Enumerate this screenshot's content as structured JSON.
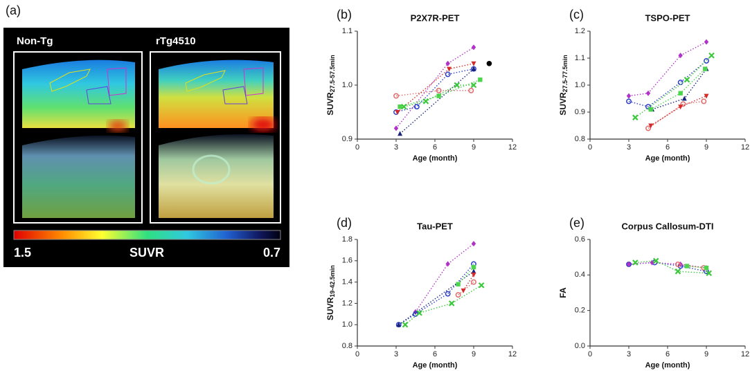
{
  "image_panel": {
    "label": "(a)",
    "left_title": "Non-Tg",
    "right_title": "rTg4510",
    "colorbar": {
      "label": "SUVR",
      "left": 1.5,
      "right": 0.7
    }
  },
  "chart_data": [
    {
      "type": "line",
      "panel_label": "(b)",
      "title": "P2X7R-PET",
      "ylabel": "SUVR",
      "ylabel_sub": "27.5-57.5min",
      "xlabel": "Age (month)",
      "xlim": [
        0,
        12
      ],
      "xticks": [
        0,
        3,
        6,
        9,
        12
      ],
      "ylim": [
        0.9,
        1.1
      ],
      "yticks": [
        0.9,
        {
          "value": 1,
          "label": "1.0"
        },
        1.1
      ],
      "series": [
        {
          "color": "#b032c8",
          "marker": "diamond",
          "x": [
            3,
            7,
            9
          ],
          "values": [
            0.92,
            1.04,
            1.07
          ]
        },
        {
          "color": "#2a3cc8",
          "marker": "circle",
          "x": [
            3,
            4.6,
            7,
            9
          ],
          "values": [
            0.95,
            0.96,
            1.02,
            1.03
          ]
        },
        {
          "color": "#1a237e",
          "marker": "triangle",
          "x": [
            3.3,
            9
          ],
          "values": [
            0.91,
            1.03
          ]
        },
        {
          "color": "#e06a6a",
          "marker": "circle",
          "x": [
            3,
            6.3,
            8.8
          ],
          "values": [
            0.98,
            0.99,
            0.99
          ]
        },
        {
          "color": "#d42a2a",
          "marker": "triangle-down",
          "x": [
            3.1,
            7.1,
            9
          ],
          "values": [
            0.95,
            1.03,
            1.04
          ]
        },
        {
          "color": "#4cd44c",
          "marker": "square",
          "x": [
            3.3,
            6.3,
            9.5
          ],
          "values": [
            0.96,
            0.98,
            1.01
          ]
        },
        {
          "color": "#3cc83c",
          "marker": "cross",
          "x": [
            3.6,
            5.3,
            7.7,
            9
          ],
          "values": [
            0.96,
            0.97,
            1,
            1
          ]
        },
        {
          "color": "#000000",
          "marker": "dot",
          "x": [
            10.2
          ],
          "values": [
            1.04
          ]
        }
      ]
    },
    {
      "type": "line",
      "panel_label": "(c)",
      "title": "TSPO-PET",
      "ylabel": "SUVR",
      "ylabel_sub": "27.5-77.5min",
      "xlabel": "Age (month)",
      "xlim": [
        0,
        12
      ],
      "xticks": [
        0,
        3,
        6,
        9,
        12
      ],
      "ylim": [
        0.8,
        1.2
      ],
      "yticks": [
        0.8,
        0.9,
        {
          "value": 1,
          "label": "1.0"
        },
        1.1,
        1.2
      ],
      "series": [
        {
          "color": "#b032c8",
          "marker": "diamond",
          "x": [
            3,
            4.5,
            7,
            9
          ],
          "values": [
            0.96,
            0.97,
            1.11,
            1.16
          ]
        },
        {
          "color": "#2a3cc8",
          "marker": "circle",
          "x": [
            3,
            4.5,
            7,
            9
          ],
          "values": [
            0.94,
            0.92,
            1.01,
            1.09
          ]
        },
        {
          "color": "#1a237e",
          "marker": "triangle",
          "x": [
            4.8,
            7.3,
            9
          ],
          "values": [
            0.91,
            0.95,
            1.06
          ]
        },
        {
          "color": "#e06a6a",
          "marker": "circle",
          "x": [
            4.5,
            7.2,
            8.8
          ],
          "values": [
            0.84,
            0.93,
            0.94
          ]
        },
        {
          "color": "#d42a2a",
          "marker": "triangle-down",
          "x": [
            4.7,
            7,
            9
          ],
          "values": [
            0.85,
            0.92,
            0.96
          ]
        },
        {
          "color": "#4cd44c",
          "marker": "square",
          "x": [
            4.7,
            7,
            8.9
          ],
          "values": [
            0.91,
            0.97,
            1.06
          ]
        },
        {
          "color": "#3cc83c",
          "marker": "cross",
          "x": [
            3.5,
            7.5,
            9.4
          ],
          "values": [
            0.88,
            1.02,
            1.11
          ]
        }
      ]
    },
    {
      "type": "line",
      "panel_label": "(d)",
      "title": "Tau-PET",
      "ylabel": "SUVR",
      "ylabel_sub": "19-42.5min",
      "xlabel": "Age (month)",
      "xlim": [
        0,
        12
      ],
      "xticks": [
        0,
        3,
        6,
        9,
        12
      ],
      "ylim": [
        0.8,
        1.8
      ],
      "yticks": [
        0.8,
        {
          "value": 1,
          "label": "1.0"
        },
        1.2,
        1.4,
        1.6,
        1.8
      ],
      "series": [
        {
          "color": "#b032c8",
          "marker": "diamond",
          "x": [
            4.5,
            7,
            9
          ],
          "values": [
            1.12,
            1.57,
            1.76
          ]
        },
        {
          "color": "#2a3cc8",
          "marker": "circle",
          "x": [
            3.2,
            4.5,
            7,
            9
          ],
          "values": [
            1,
            1.1,
            1.29,
            1.57
          ]
        },
        {
          "color": "#1a237e",
          "marker": "triangle",
          "x": [
            3.2,
            9
          ],
          "values": [
            1,
            1.5
          ]
        },
        {
          "color": "#e06a6a",
          "marker": "circle",
          "x": [
            7.8,
            9
          ],
          "values": [
            1.28,
            1.4
          ]
        },
        {
          "color": "#d42a2a",
          "marker": "triangle-down",
          "x": [
            8.2,
            9
          ],
          "values": [
            1.32,
            1.47
          ]
        },
        {
          "color": "#4cd44c",
          "marker": "square",
          "x": [
            7.8,
            9
          ],
          "values": [
            1.38,
            1.54
          ]
        },
        {
          "color": "#3cc83c",
          "marker": "cross",
          "x": [
            3.7,
            4.8,
            7.3,
            9.6
          ],
          "values": [
            1,
            1.11,
            1.2,
            1.37
          ]
        }
      ]
    },
    {
      "type": "line",
      "panel_label": "(e)",
      "title": "Corpus Callosum-DTI",
      "ylabel": "FA",
      "xlabel": "Age (month)",
      "xlim": [
        0,
        12
      ],
      "xticks": [
        0,
        3,
        6,
        9,
        12
      ],
      "ylim": [
        0,
        0.6
      ],
      "yticks": [
        {
          "value": 0,
          "label": "0.0"
        },
        0.2,
        0.4,
        0.6
      ],
      "series": [
        {
          "color": "#2a3cc8",
          "marker": "circle",
          "x": [
            3,
            5,
            7,
            9
          ],
          "values": [
            0.46,
            0.47,
            0.45,
            0.42
          ]
        },
        {
          "color": "#b032c8",
          "marker": "diamond",
          "x": [
            3,
            4.8,
            7,
            9
          ],
          "values": [
            0.46,
            0.47,
            0.46,
            0.44
          ]
        },
        {
          "color": "#3cc83c",
          "marker": "cross",
          "x": [
            3.5,
            5.1,
            6.8,
            9.2
          ],
          "values": [
            0.47,
            0.48,
            0.42,
            0.41
          ]
        },
        {
          "color": "#e06a6a",
          "marker": "circle",
          "x": [
            6.8,
            8.8
          ],
          "values": [
            0.46,
            0.44
          ]
        },
        {
          "color": "#4cd44c",
          "marker": "square",
          "x": [
            7.5,
            9
          ],
          "values": [
            0.45,
            0.44
          ]
        }
      ]
    }
  ]
}
